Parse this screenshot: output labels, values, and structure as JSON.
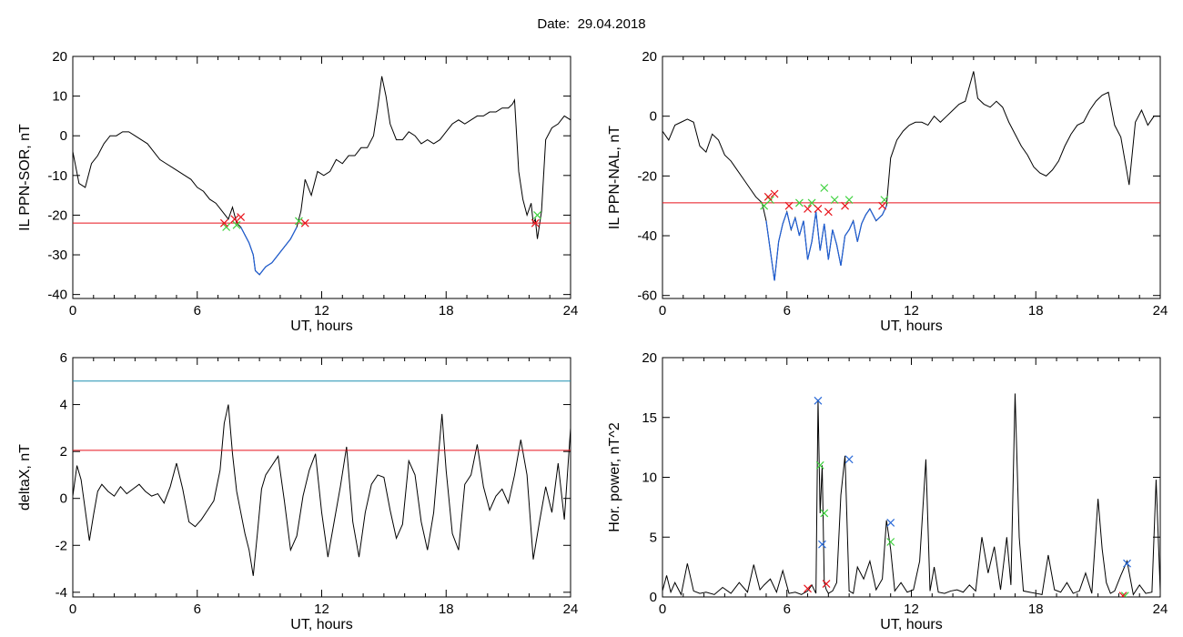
{
  "header": {
    "date_label": "Date:",
    "date_value": "29.04.2018"
  },
  "colors": {
    "data": "#000000",
    "below_threshold": "#1f5fd6",
    "threshold": "#e8131b",
    "upper_threshold": "#1e8fb0",
    "marker_red": "#e8131b",
    "marker_green": "#3cd13c",
    "marker_blue": "#2a6ad8"
  },
  "chart_data": [
    {
      "id": "il-sor",
      "type": "line",
      "xlabel": "UT, hours",
      "ylabel": "IL PPN-SOR, nT",
      "xlim": [
        0,
        24
      ],
      "ylim": [
        -41,
        20
      ],
      "xticks": [
        0,
        6,
        12,
        18,
        24
      ],
      "yticks": [
        -40,
        -30,
        -20,
        -10,
        0,
        10,
        20
      ],
      "threshold": -22,
      "series": [
        {
          "x": [
            0,
            0.3,
            0.6,
            0.9,
            1.2,
            1.5,
            1.8,
            2.1,
            2.4,
            2.7,
            3.0,
            3.3,
            3.6,
            3.9,
            4.2,
            4.5,
            4.8,
            5.1,
            5.4,
            5.7,
            6.0,
            6.3,
            6.6,
            6.9,
            7.2,
            7.5,
            7.7,
            7.9,
            8.1,
            8.3,
            8.5,
            8.7,
            8.8,
            9.0,
            9.3,
            9.6,
            9.9,
            10.2,
            10.5,
            10.8,
            11.0,
            11.2,
            11.5,
            11.8,
            12.1,
            12.4,
            12.7,
            13.0,
            13.3,
            13.6,
            13.9,
            14.2,
            14.5,
            14.7,
            14.9,
            15.1,
            15.3,
            15.6,
            15.9,
            16.2,
            16.5,
            16.8,
            17.1,
            17.4,
            17.7,
            18.0,
            18.3,
            18.6,
            18.9,
            19.2,
            19.5,
            19.8,
            20.1,
            20.4,
            20.7,
            21.0,
            21.2,
            21.3,
            21.5,
            21.7,
            21.9,
            22.1,
            22.2,
            22.3,
            22.4,
            22.6,
            22.8,
            23.1,
            23.4,
            23.7,
            24.0
          ],
          "y": [
            -4,
            -12,
            -13,
            -7,
            -5,
            -2,
            0,
            0,
            1,
            1,
            0,
            -1,
            -2,
            -4,
            -6,
            -7,
            -8,
            -9,
            -10,
            -11,
            -13,
            -14,
            -16,
            -17,
            -19,
            -21,
            -18,
            -22,
            -23,
            -25,
            -27,
            -30,
            -34,
            -35,
            -33,
            -32,
            -30,
            -28,
            -26,
            -23,
            -19,
            -11,
            -15,
            -9,
            -10,
            -9,
            -6,
            -7,
            -5,
            -5,
            -3,
            -3,
            0,
            7,
            15,
            10,
            3,
            -1,
            -1,
            1,
            0,
            -2,
            -1,
            -2,
            -1,
            1,
            3,
            4,
            3,
            4,
            5,
            5,
            6,
            6,
            7,
            7,
            8,
            9,
            -9,
            -16,
            -20,
            -17,
            -22,
            -21,
            -26,
            -19,
            -1,
            2,
            3,
            5,
            4
          ]
        }
      ],
      "markers_red": [
        [
          7.3,
          -22
        ],
        [
          7.8,
          -21
        ],
        [
          8.1,
          -20.5
        ],
        [
          11.2,
          -22
        ],
        [
          22.3,
          -22
        ]
      ],
      "markers_green": [
        [
          7.4,
          -23
        ],
        [
          7.9,
          -22.5
        ],
        [
          10.9,
          -21.5
        ],
        [
          22.4,
          -20
        ]
      ]
    },
    {
      "id": "il-nal",
      "type": "line",
      "xlabel": "UT, hours",
      "ylabel": "IL PPN-NAL, nT",
      "xlim": [
        0,
        24
      ],
      "ylim": [
        -61,
        20
      ],
      "xticks": [
        0,
        6,
        12,
        18,
        24
      ],
      "yticks": [
        -60,
        -40,
        -20,
        0,
        20
      ],
      "threshold": -29,
      "series": [
        {
          "x": [
            0,
            0.3,
            0.6,
            0.9,
            1.2,
            1.5,
            1.8,
            2.1,
            2.4,
            2.7,
            3.0,
            3.3,
            3.6,
            3.9,
            4.2,
            4.5,
            4.8,
            5.0,
            5.2,
            5.4,
            5.6,
            5.8,
            6.0,
            6.2,
            6.4,
            6.6,
            6.8,
            7.0,
            7.2,
            7.4,
            7.6,
            7.8,
            8.0,
            8.2,
            8.4,
            8.6,
            8.8,
            9.0,
            9.2,
            9.4,
            9.6,
            9.8,
            10.0,
            10.3,
            10.6,
            10.8,
            11.0,
            11.3,
            11.6,
            11.9,
            12.2,
            12.5,
            12.8,
            13.1,
            13.4,
            13.7,
            14.0,
            14.3,
            14.6,
            14.8,
            15.0,
            15.2,
            15.5,
            15.8,
            16.1,
            16.4,
            16.7,
            17.0,
            17.3,
            17.6,
            17.9,
            18.2,
            18.5,
            18.8,
            19.1,
            19.4,
            19.7,
            20.0,
            20.3,
            20.6,
            20.9,
            21.2,
            21.5,
            21.8,
            22.1,
            22.3,
            22.5,
            22.8,
            23.1,
            23.4,
            23.7,
            24.0
          ],
          "y": [
            -5,
            -8,
            -3,
            -2,
            -1,
            -2,
            -10,
            -12,
            -6,
            -8,
            -13,
            -15,
            -18,
            -21,
            -24,
            -27,
            -29,
            -35,
            -45,
            -55,
            -42,
            -36,
            -32,
            -38,
            -34,
            -40,
            -35,
            -48,
            -42,
            -32,
            -45,
            -36,
            -48,
            -38,
            -43,
            -50,
            -40,
            -38,
            -35,
            -42,
            -36,
            -33,
            -31,
            -35,
            -33,
            -30,
            -14,
            -8,
            -5,
            -3,
            -2,
            -2,
            -3,
            0,
            -2,
            0,
            2,
            4,
            5,
            10,
            15,
            6,
            4,
            3,
            5,
            3,
            -2,
            -6,
            -10,
            -13,
            -17,
            -19,
            -20,
            -18,
            -15,
            -10,
            -6,
            -3,
            -2,
            2,
            5,
            7,
            8,
            -3,
            -7,
            -15,
            -23,
            -2,
            2,
            -3,
            0,
            0
          ]
        }
      ],
      "markers_red": [
        [
          5.1,
          -27
        ],
        [
          5.4,
          -26
        ],
        [
          6.1,
          -30
        ],
        [
          7.0,
          -31
        ],
        [
          7.5,
          -31
        ],
        [
          8.0,
          -32
        ],
        [
          8.8,
          -30
        ],
        [
          10.6,
          -30
        ]
      ],
      "markers_green": [
        [
          4.9,
          -30
        ],
        [
          5.2,
          -28
        ],
        [
          6.6,
          -29
        ],
        [
          7.2,
          -29
        ],
        [
          7.8,
          -24
        ],
        [
          8.3,
          -28
        ],
        [
          9.0,
          -28
        ],
        [
          10.7,
          -28
        ]
      ]
    },
    {
      "id": "delta-x",
      "type": "line",
      "xlabel": "UT, hours",
      "ylabel": "deltaX, nT",
      "xlim": [
        0,
        24
      ],
      "ylim": [
        -4.2,
        6
      ],
      "xticks": [
        0,
        6,
        12,
        18,
        24
      ],
      "yticks": [
        -4,
        -2,
        0,
        2,
        4,
        6
      ],
      "threshold": 2.05,
      "upper_threshold": 5.0,
      "series": [
        {
          "x": [
            0,
            0.2,
            0.4,
            0.6,
            0.8,
            1.0,
            1.2,
            1.4,
            1.7,
            2.0,
            2.3,
            2.6,
            2.9,
            3.2,
            3.5,
            3.8,
            4.1,
            4.4,
            4.7,
            5.0,
            5.3,
            5.6,
            5.9,
            6.2,
            6.5,
            6.8,
            7.1,
            7.3,
            7.5,
            7.7,
            7.9,
            8.1,
            8.3,
            8.5,
            8.7,
            8.9,
            9.1,
            9.3,
            9.6,
            9.9,
            10.2,
            10.5,
            10.8,
            11.1,
            11.4,
            11.7,
            12.0,
            12.3,
            12.6,
            12.9,
            13.2,
            13.5,
            13.8,
            14.1,
            14.4,
            14.7,
            15.0,
            15.3,
            15.6,
            15.9,
            16.2,
            16.5,
            16.8,
            17.1,
            17.4,
            17.6,
            17.8,
            18.0,
            18.3,
            18.6,
            18.9,
            19.2,
            19.5,
            19.8,
            20.1,
            20.4,
            20.7,
            21.0,
            21.3,
            21.6,
            21.9,
            22.2,
            22.5,
            22.8,
            23.1,
            23.4,
            23.7,
            24.0
          ],
          "y": [
            0.1,
            1.4,
            0.8,
            -0.5,
            -1.8,
            -0.7,
            0.3,
            0.6,
            0.3,
            0.1,
            0.5,
            0.2,
            0.4,
            0.6,
            0.3,
            0.1,
            0.2,
            -0.2,
            0.5,
            1.5,
            0.4,
            -1.0,
            -1.2,
            -0.9,
            -0.5,
            -0.1,
            1.2,
            3.2,
            4.0,
            1.9,
            0.3,
            -0.6,
            -1.5,
            -2.2,
            -3.3,
            -1.5,
            0.4,
            1.0,
            1.4,
            1.8,
            -0.1,
            -2.2,
            -1.6,
            0.1,
            1.2,
            1.9,
            -0.6,
            -2.5,
            -1.0,
            0.5,
            2.2,
            -1.0,
            -2.5,
            -0.6,
            0.6,
            1.0,
            0.9,
            -0.5,
            -1.7,
            -1.1,
            1.6,
            1.0,
            -1.0,
            -2.2,
            -0.6,
            1.5,
            3.6,
            1.2,
            -1.5,
            -2.2,
            0.6,
            1.0,
            2.3,
            0.5,
            -0.5,
            0.1,
            0.4,
            -0.2,
            1.0,
            2.5,
            1.0,
            -2.6,
            -1.0,
            0.5,
            -0.6,
            1.5,
            -0.9,
            3.0
          ]
        }
      ]
    },
    {
      "id": "hor-power",
      "type": "line",
      "xlabel": "UT, hours",
      "ylabel": "Hor. power, nT^2",
      "xlim": [
        0,
        24
      ],
      "ylim": [
        0,
        20
      ],
      "xticks": [
        0,
        6,
        12,
        18,
        24
      ],
      "yticks": [
        0,
        5,
        10,
        15,
        20
      ],
      "series": [
        {
          "x": [
            0,
            0.2,
            0.4,
            0.6,
            0.9,
            1.2,
            1.5,
            1.8,
            2.1,
            2.5,
            2.9,
            3.3,
            3.7,
            4.1,
            4.4,
            4.7,
            4.9,
            5.2,
            5.5,
            5.8,
            6.1,
            6.4,
            6.7,
            7.0,
            7.2,
            7.4,
            7.5,
            7.6,
            7.7,
            7.8,
            7.9,
            8.0,
            8.2,
            8.4,
            8.6,
            8.8,
            9.0,
            9.2,
            9.4,
            9.7,
            10.0,
            10.3,
            10.6,
            10.8,
            11.0,
            11.2,
            11.5,
            11.8,
            12.1,
            12.4,
            12.7,
            12.9,
            13.1,
            13.3,
            13.6,
            13.9,
            14.2,
            14.5,
            14.8,
            15.1,
            15.4,
            15.7,
            16.0,
            16.3,
            16.6,
            16.8,
            17.0,
            17.2,
            17.4,
            17.7,
            18.0,
            18.3,
            18.6,
            18.9,
            19.2,
            19.5,
            19.8,
            20.1,
            20.4,
            20.7,
            21.0,
            21.2,
            21.4,
            21.6,
            21.8,
            22.1,
            22.4,
            22.7,
            23.0,
            23.3,
            23.6,
            23.8,
            24.0
          ],
          "y": [
            0.5,
            1.8,
            0.4,
            1.2,
            0.2,
            2.8,
            0.5,
            0.3,
            0.4,
            0.2,
            0.8,
            0.3,
            1.2,
            0.4,
            2.7,
            0.6,
            1.0,
            1.5,
            0.4,
            2.2,
            0.3,
            0.4,
            0.2,
            0.5,
            1.0,
            0.3,
            16.5,
            7.0,
            11.0,
            1.2,
            0.6,
            0.3,
            0.5,
            1.2,
            8.5,
            11.8,
            0.5,
            0.3,
            2.5,
            1.5,
            3.0,
            0.6,
            1.5,
            6.4,
            4.0,
            0.5,
            1.2,
            0.4,
            0.6,
            3.0,
            11.5,
            0.5,
            2.5,
            0.4,
            0.3,
            0.5,
            0.6,
            0.4,
            1.0,
            0.5,
            5.0,
            2.0,
            4.2,
            0.6,
            5.0,
            1.0,
            17.0,
            5.0,
            0.5,
            0.4,
            0.3,
            0.2,
            3.5,
            0.6,
            0.4,
            1.2,
            0.3,
            0.5,
            2.0,
            0.3,
            8.2,
            4.0,
            1.2,
            0.3,
            0.5,
            1.8,
            3.0,
            0.2,
            1.0,
            0.3,
            0.4,
            9.8,
            0.5
          ]
        }
      ],
      "markers_blue": [
        [
          7.5,
          16.4
        ],
        [
          7.7,
          4.4
        ],
        [
          9.0,
          11.5
        ],
        [
          11.0,
          6.2
        ],
        [
          22.4,
          2.8
        ]
      ],
      "markers_green": [
        [
          7.6,
          11.0
        ],
        [
          7.8,
          7.0
        ],
        [
          11.0,
          4.6
        ],
        [
          22.3,
          0.1
        ]
      ],
      "markers_red": [
        [
          7.0,
          0.7
        ],
        [
          7.9,
          1.1
        ],
        [
          22.2,
          0.1
        ]
      ]
    }
  ]
}
